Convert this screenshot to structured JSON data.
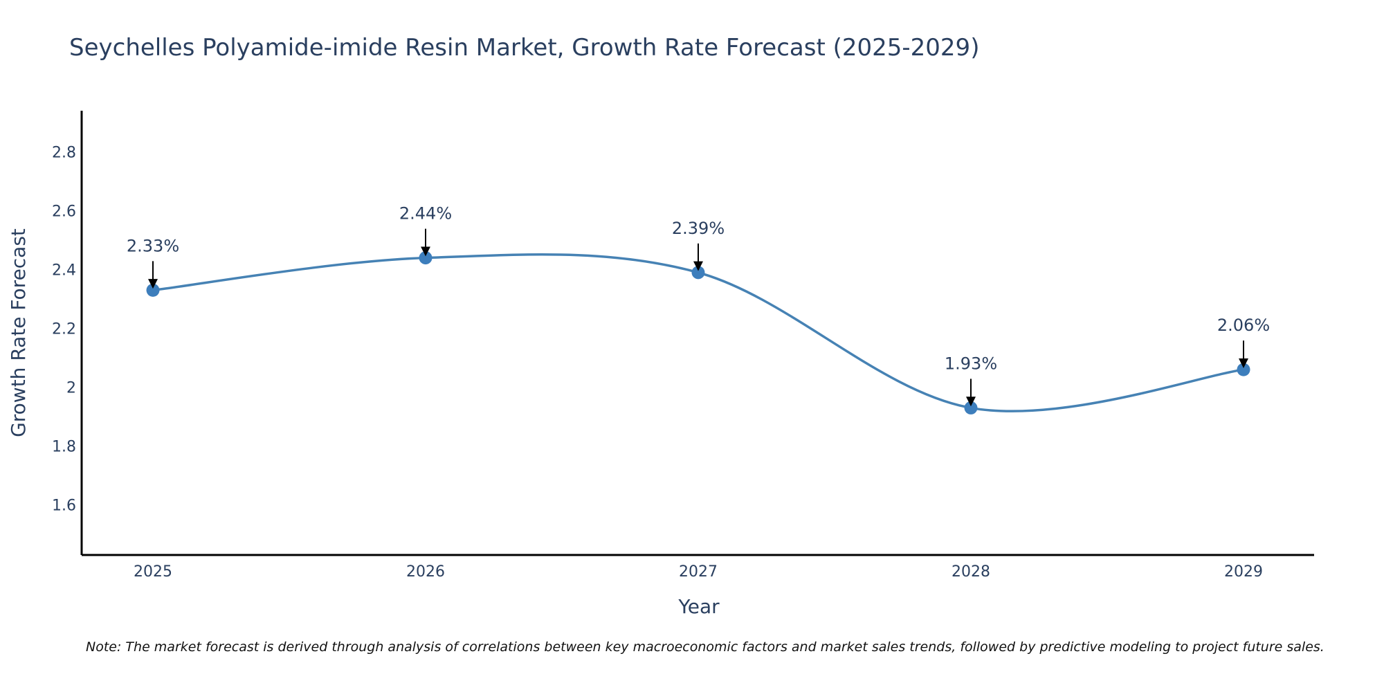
{
  "chart_data": {
    "type": "line",
    "title": "Seychelles Polyamide-imide Resin Market, Growth Rate Forecast (2025-2029)",
    "xlabel": "Year",
    "ylabel": "Growth Rate Forecast",
    "categories": [
      "2025",
      "2026",
      "2027",
      "2028",
      "2029"
    ],
    "values": [
      2.33,
      2.44,
      2.39,
      1.93,
      2.06
    ],
    "data_labels": [
      "2.33%",
      "2.44%",
      "2.39%",
      "1.93%",
      "2.06%"
    ],
    "y_ticks": [
      1.6,
      1.8,
      2,
      2.2,
      2.4,
      2.6,
      2.8
    ],
    "y_tick_labels": [
      "1.6",
      "1.8",
      "2",
      "2.2",
      "2.4",
      "2.6",
      "2.8"
    ],
    "ylim": [
      1.43,
      2.94
    ],
    "grid": false,
    "line_shape": "spline",
    "colors": {
      "line": "#4682b4",
      "marker": "#3d7ebc",
      "axis": "#000000",
      "text": "#2a3f5f",
      "arrow": "#000000"
    },
    "note": "Note: The market forecast is derived through analysis of correlations between key macroeconomic factors and market sales trends, followed by predictive modeling to project future sales."
  }
}
